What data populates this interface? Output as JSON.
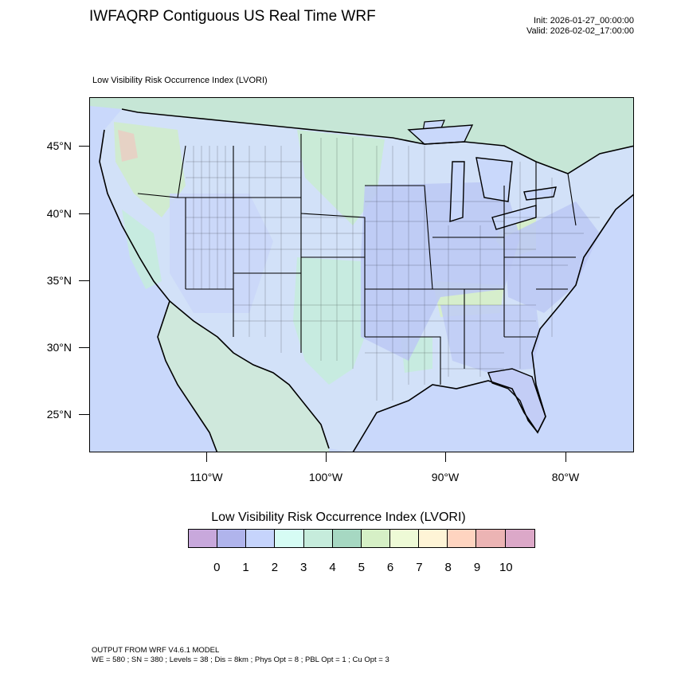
{
  "header": {
    "title": "IWFAQRP Contiguous US Real Time WRF",
    "init": "Init: 2026-01-27_00:00:00",
    "valid": "Valid: 2026-02-02_17:00:00"
  },
  "plot": {
    "subtitle": "Low Visibility Risk Occurrence Index   (LVORI)",
    "lat_labels": [
      "45°N",
      "40°N",
      "35°N",
      "30°N",
      "25°N"
    ],
    "lon_labels": [
      "110°W",
      "100°W",
      "90°W",
      "80°W"
    ]
  },
  "colorbar": {
    "title": "Low Visibility Risk Occurrence Index  (LVORI)",
    "labels": [
      "0",
      "1",
      "2",
      "3",
      "4",
      "5",
      "6",
      "7",
      "8",
      "9",
      "10"
    ],
    "colors": [
      "#c8a8dc",
      "#b0b4ec",
      "#c6d4fc",
      "#d6fcf4",
      "#c6ecdc",
      "#a6d8c2",
      "#d6f0c6",
      "#eefad6",
      "#fef4d6",
      "#fed4c0",
      "#ecb4b4",
      "#dca8c8"
    ]
  },
  "map_colors": {
    "ocean": "#c9d8fb",
    "land_low": "#d3e3f6",
    "land_mid": "#bfe4d4",
    "land_green": "#cfedc3",
    "borders": "#000000"
  },
  "footer": {
    "line1": "OUTPUT FROM WRF V4.6.1 MODEL",
    "line2": "WE = 580 ; SN = 380 ; Levels = 38 ; Dis = 8km ; Phys Opt = 8 ; PBL Opt = 1 ; Cu Opt = 3"
  }
}
